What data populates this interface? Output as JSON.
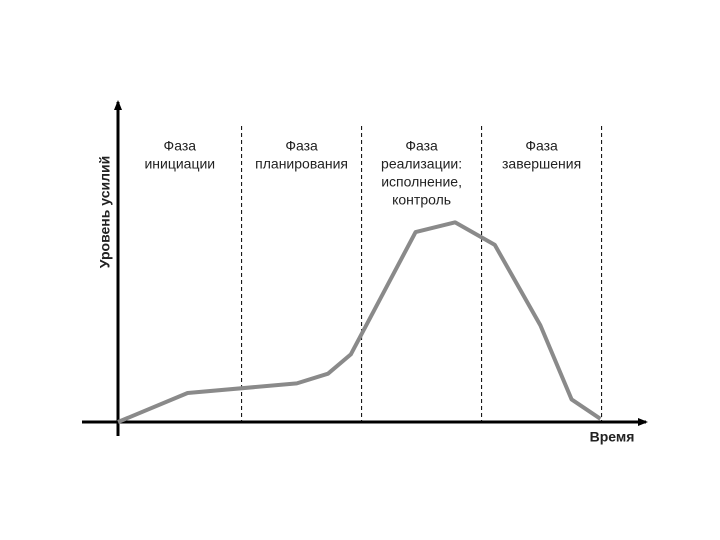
{
  "chart_data": {
    "type": "line",
    "ylabel": "Уровень усилий",
    "xlabel": "Время",
    "x": [
      0,
      0.58,
      1.49,
      1.75,
      1.94,
      2.48,
      2.81,
      3.14,
      3.52,
      3.78,
      4.02
    ],
    "values": [
      0,
      9,
      12,
      15,
      21,
      59,
      62,
      55,
      30,
      7,
      1
    ],
    "color": "#8a8a8a",
    "xlim": [
      0,
      4.4
    ],
    "ylim": [
      0,
      100
    ],
    "phase_boundaries": [
      1.03,
      2.03,
      3.03,
      4.03
    ],
    "phases": [
      [
        "Фаза",
        "инициации"
      ],
      [
        "Фаза",
        "планирования"
      ],
      [
        "Фаза",
        "реализации:",
        "исполнение,",
        "контроль"
      ],
      [
        "Фаза",
        "завершения"
      ]
    ]
  }
}
